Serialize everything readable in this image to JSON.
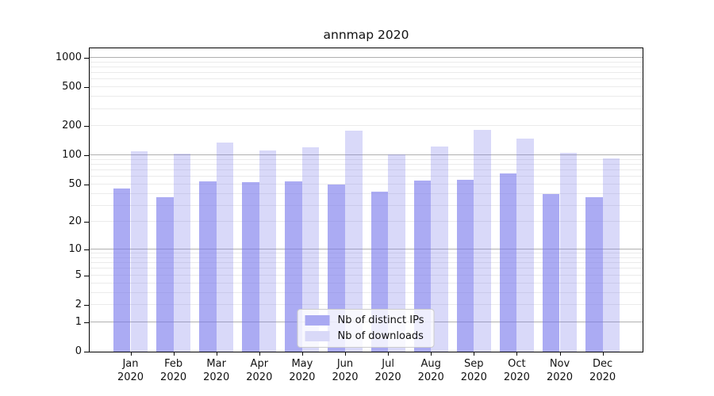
{
  "title": "annmap 2020",
  "chart_data": {
    "type": "bar",
    "title": "annmap 2020",
    "categories": [
      "Jan\n2020",
      "Feb\n2020",
      "Mar\n2020",
      "Apr\n2020",
      "May\n2020",
      "Jun\n2020",
      "Jul\n2020",
      "Aug\n2020",
      "Sep\n2020",
      "Oct\n2020",
      "Nov\n2020",
      "Dec\n2020"
    ],
    "series": [
      {
        "name": "Nb of distinct IPs",
        "fill": "rgba(120,120,235,0.62)",
        "swatch": "#a9a9f2",
        "values": [
          45,
          37,
          54,
          53,
          54,
          50,
          42,
          55,
          56,
          65,
          40,
          37
        ]
      },
      {
        "name": "Nb of downloads",
        "fill": "rgba(120,120,235,0.28)",
        "swatch": "#d9d9f8",
        "values": [
          110,
          104,
          136,
          112,
          121,
          180,
          102,
          123,
          183,
          149,
          107,
          93
        ]
      }
    ],
    "yscale": "log1p",
    "ylim": [
      0,
      1250
    ],
    "yticks": [
      1000,
      500,
      200,
      100,
      50,
      20,
      10,
      5,
      2,
      1,
      0
    ],
    "grid": "both",
    "legend_position": "lower center"
  },
  "colors": {
    "grid_major": "#b0b0b0",
    "grid_minor": "#ebebeb",
    "axis": "#000000",
    "legend_border": "#cccccc"
  }
}
